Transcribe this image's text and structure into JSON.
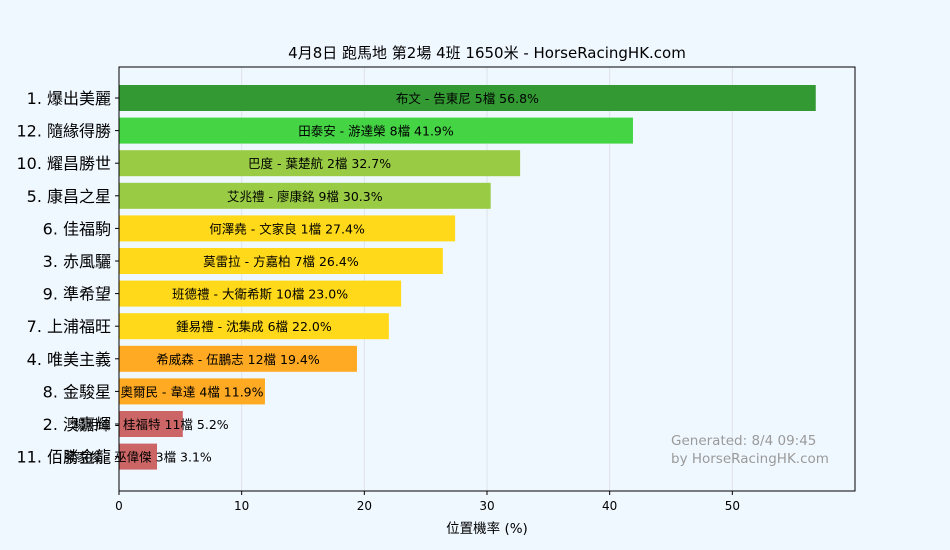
{
  "chart_data": {
    "type": "bar",
    "orientation": "horizontal",
    "title": "4月8日  跑馬地  第2場  4班  1650米 - HorseRacingHK.com",
    "xlabel": "位置機率 (%)",
    "ylabel": "",
    "xlim": [
      0,
      60
    ],
    "xticks": [
      0,
      10,
      20,
      30,
      40,
      50
    ],
    "grid": "vertical",
    "categories": [
      "1. 爆出美麗",
      "12. 隨緣得勝",
      "10. 耀昌勝世",
      "5. 康昌之星",
      "6. 佳福駒",
      "3. 赤風驪",
      "9. 準希望",
      "7. 上浦福旺",
      "4. 唯美主義",
      "8. 金駿星",
      "2. 澳嘉輝",
      "11. 佰勝金龍"
    ],
    "values": [
      56.8,
      41.9,
      32.7,
      30.3,
      27.4,
      26.4,
      23.0,
      22.0,
      19.4,
      11.9,
      5.2,
      3.1
    ],
    "bar_labels": [
      "布文 - 告東尼 5檔  56.8%",
      "田泰安 - 游達榮 8檔  41.9%",
      "巴度 - 葉楚航 2檔  32.7%",
      "艾兆禮 - 廖康銘 9檔  30.3%",
      "何澤堯 - 文家良 1檔  27.4%",
      "莫雷拉 - 方嘉柏 7檔  26.4%",
      "班德禮 - 大衛希斯 10檔  23.0%",
      "鍾易禮 - 沈集成 6檔  22.0%",
      "希威森 - 伍鵬志 12檔  19.4%",
      "奧爾民 - 韋達 4檔  11.9%",
      "楊明綸 - 桂福特 11檔  5.2%",
      "梁家俊 - 巫偉傑 3檔  3.1%"
    ],
    "colors": [
      "#339933",
      "#44d444",
      "#99cc44",
      "#99cc44",
      "#ffd91a",
      "#ffd91a",
      "#ffd91a",
      "#ffd91a",
      "#ffaa22",
      "#ffaa22",
      "#cc6666",
      "#cc6666"
    ],
    "watermark": [
      "Generated: 8/4 09:45",
      "by HorseRacingHK.com"
    ]
  }
}
